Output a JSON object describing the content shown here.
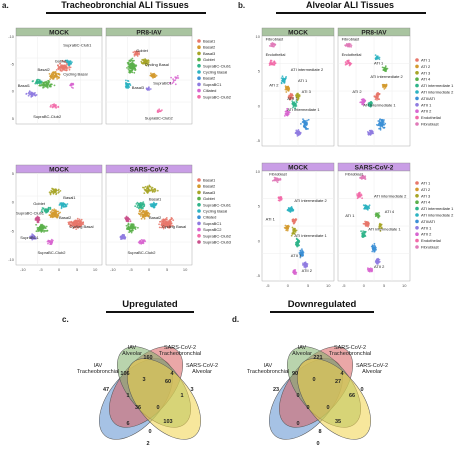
{
  "panels": {
    "a": {
      "letter": "a.",
      "title": "Tracheobronchial ALI Tissues",
      "top_strips": [
        "MOCK",
        "PR8-IAV"
      ],
      "bottom_strips": [
        "MOCK",
        "SARS-CoV-2"
      ],
      "top_legend": [
        "Basal1",
        "Basal2",
        "Basal3",
        "Goblet",
        "SupraBC-Club1",
        "Cycling Basal",
        "Basal2",
        "SupraBC1",
        "Ciliated",
        "SupraBC-Club2"
      ],
      "bottom_legend": [
        "Basal1",
        "Basal2",
        "Basal3",
        "Goblet",
        "SupraBC-Club1",
        "Cycling Basal",
        "Ciliated",
        "SupraBC1",
        "SupraBC2",
        "SupraBC-Club2",
        "SupraBC-Club3"
      ],
      "top_labels": [
        "SupraBC-Club1",
        "Goblet",
        "Cycling Basal",
        "Basal2",
        "Basal3",
        "Basal1",
        "SupraBC1",
        "SupraBC-Club2",
        "Ciliated"
      ],
      "bottom_labels": [
        "Basal1",
        "Goblet",
        "Basal2",
        "SupraBC-Club1",
        "Cycling Basal",
        "SupraBC1",
        "SupraBC-Club2"
      ]
    },
    "b": {
      "letter": "b.",
      "title": "Alveolar ALI Tissues",
      "top_strips": [
        "MOCK",
        "PR8-IAV"
      ],
      "bottom_strips": [
        "MOCK",
        "SARS-CoV-2"
      ],
      "top_legend": [
        "ATI 1",
        "ATI 2",
        "ATI 3",
        "ATI 4",
        "ATI intermediate 1",
        "ATI intermediate 2",
        "ATII/ATI",
        "ATII 1",
        "ATII 2",
        "Endothelial",
        "Fibroblast"
      ],
      "bottom_legend": [
        "ATI 1",
        "ATI 2",
        "ATI 3",
        "ATI 4",
        "ATI intermediate 1",
        "ATI intermediate 2",
        "ATII/ATI",
        "ATII 1",
        "ATII 2",
        "Endothelial",
        "Fibroblast"
      ],
      "top_labels": [
        "Fibroblast",
        "Endothelial",
        "ATI intermediate 2",
        "ATI 2",
        "ATI 1",
        "ATI 3",
        "ATI intermediate 1",
        "ATII 1"
      ],
      "bottom_labels": [
        "Fibroblast",
        "ATI intermediate 2",
        "ATI 4",
        "ATI 1",
        "ATI intermediate 1",
        "ATII 1",
        "ATII 2"
      ]
    },
    "c": {
      "letter": "c.",
      "title": "Upregulated",
      "set_labels": [
        "IAV Tracheobronchial",
        "IAV Alveolar",
        "SARS-CoV-2 Tracheobronchial",
        "SARS-CoV-2 Alveolar"
      ],
      "region_values": [
        47,
        106,
        160,
        4,
        3,
        1,
        3,
        60,
        1,
        36,
        0,
        6,
        103,
        0,
        2
      ]
    },
    "d": {
      "letter": "d.",
      "title": "Downregulated",
      "set_labels": [
        "IAV Tracheobronchial",
        "IAV Alveolar",
        "SARS-CoV-2 Tracheobronchial",
        "SARS-CoV-2 Alveolar"
      ],
      "region_values": [
        23,
        90,
        221,
        4,
        0,
        0,
        0,
        27,
        66,
        0,
        0,
        0,
        35,
        8,
        0
      ]
    }
  },
  "chart_data": [
    {
      "type": "scatter",
      "title": "Tracheobronchial ALI Tissues",
      "facets": [
        "MOCK",
        "PR8-IAV",
        "MOCK",
        "SARS-CoV-2"
      ],
      "xlim": [
        -10,
        10
      ],
      "ylim": [
        -10,
        10
      ],
      "x_ticks": [
        "-10",
        "-5",
        "0",
        "5",
        "10"
      ],
      "y_ticks": [
        "-10",
        "-5",
        "0",
        "5"
      ]
    },
    {
      "type": "scatter",
      "title": "Alveolar ALI Tissues",
      "facets": [
        "MOCK",
        "PR8-IAV",
        "MOCK",
        "SARS-CoV-2"
      ],
      "xlim": [
        -10,
        10
      ],
      "ylim": [
        -10,
        12
      ],
      "x_ticks": [
        "-5",
        "0",
        "5",
        "10"
      ],
      "y_ticks": [
        "-5",
        "0",
        "5",
        "10"
      ]
    },
    {
      "type": "venn",
      "title": "Upregulated",
      "sets": [
        "IAV Tracheobronchial",
        "IAV Alveolar",
        "SARS-CoV-2 Tracheobronchial",
        "SARS-CoV-2 Alveolar"
      ],
      "values": [
        47,
        106,
        160,
        4,
        3,
        1,
        3,
        60,
        1,
        36,
        0,
        6,
        103,
        0,
        2
      ]
    },
    {
      "type": "venn",
      "title": "Downregulated",
      "sets": [
        "IAV Tracheobronchial",
        "IAV Alveolar",
        "SARS-CoV-2 Tracheobronchial",
        "SARS-CoV-2 Alveolar"
      ],
      "values": [
        23,
        90,
        221,
        4,
        0,
        0,
        0,
        27,
        66,
        0,
        0,
        0,
        35,
        8,
        0
      ]
    }
  ],
  "colors": {
    "strip_gray": "#a9c4a0",
    "strip_purple": "#c99ee6",
    "venn_blue": "#5d8fd0",
    "venn_red": "#d95f5f",
    "venn_green": "#7fb069",
    "venn_yellow": "#f0d34a"
  }
}
